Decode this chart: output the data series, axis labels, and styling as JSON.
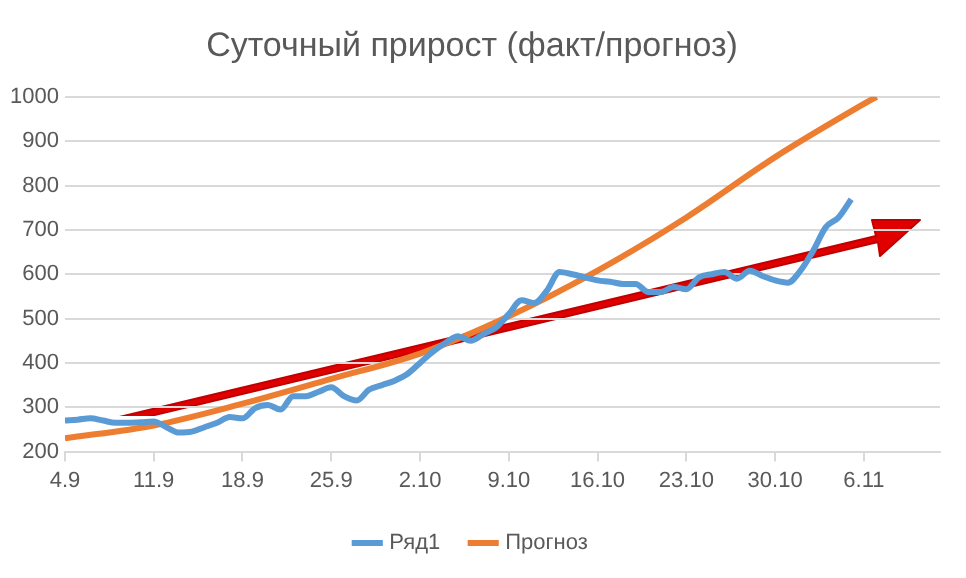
{
  "chart_data": {
    "type": "line",
    "title": "Суточный прирост (факт/прогноз)",
    "xlim": [
      "--09-04",
      "--11-12"
    ],
    "xticks": [
      {
        "value": "--09-04",
        "label": "4.9"
      },
      {
        "value": "--09-11",
        "label": "11.9"
      },
      {
        "value": "--09-18",
        "label": "18.9"
      },
      {
        "value": "--09-25",
        "label": "25.9"
      },
      {
        "value": "--10-02",
        "label": "2.10"
      },
      {
        "value": "--10-09",
        "label": "9.10"
      },
      {
        "value": "--10-16",
        "label": "16.10"
      },
      {
        "value": "--10-23",
        "label": "23.10"
      },
      {
        "value": "--10-30",
        "label": "30.10"
      },
      {
        "value": "--11-06",
        "label": "6.11"
      }
    ],
    "ylim": [
      200,
      1000
    ],
    "yticks": [
      200,
      300,
      400,
      500,
      600,
      700,
      800,
      900,
      1000
    ],
    "grid": "y",
    "legend": "bottom",
    "marker": "none",
    "line_style": "solid",
    "series": [
      {
        "name": "Ряд1",
        "color": "#5b9bd5",
        "x": [
          "--09-04",
          "--09-05",
          "--09-06",
          "--09-07",
          "--09-08",
          "--09-09",
          "--09-10",
          "--09-11",
          "--09-12",
          "--09-13",
          "--09-14",
          "--09-15",
          "--09-16",
          "--09-17",
          "--09-18",
          "--09-19",
          "--09-20",
          "--09-21",
          "--09-22",
          "--09-23",
          "--09-24",
          "--09-25",
          "--09-26",
          "--09-27",
          "--09-28",
          "--09-29",
          "--09-30",
          "--10-01",
          "--10-02",
          "--10-03",
          "--10-04",
          "--10-05",
          "--10-06",
          "--10-07",
          "--10-08",
          "--10-09",
          "--10-10",
          "--10-11",
          "--10-12",
          "--10-13",
          "--10-14",
          "--10-15",
          "--10-16",
          "--10-17",
          "--10-18",
          "--10-19",
          "--10-20",
          "--10-21",
          "--10-22",
          "--10-23",
          "--10-24",
          "--10-25",
          "--10-26",
          "--10-27",
          "--10-28",
          "--10-29",
          "--10-30",
          "--10-31",
          "--11-01",
          "--11-02",
          "--11-03",
          "--11-04",
          "--11-05"
        ],
        "values": [
          270,
          272,
          275,
          270,
          265,
          265,
          266,
          268,
          255,
          243,
          245,
          255,
          265,
          278,
          275,
          298,
          305,
          295,
          325,
          325,
          335,
          345,
          325,
          315,
          340,
          350,
          360,
          375,
          400,
          425,
          445,
          460,
          450,
          465,
          480,
          510,
          541,
          535,
          563,
          605,
          600,
          593,
          586,
          583,
          578,
          578,
          560,
          560,
          571,
          566,
          593,
          600,
          605,
          590,
          608,
          596,
          586,
          581,
          608,
          653,
          706,
          728,
          769
        ]
      },
      {
        "name": "Прогноз",
        "color": "#ed7d31",
        "x": [
          "--09-04",
          "--09-11",
          "--09-18",
          "--09-25",
          "--10-02",
          "--10-09",
          "--10-16",
          "--10-23",
          "--10-30",
          "--11-06",
          "--11-07"
        ],
        "values": [
          230,
          259,
          308,
          364,
          421,
          505,
          608,
          728,
          864,
          984,
          1000
        ]
      }
    ]
  }
}
